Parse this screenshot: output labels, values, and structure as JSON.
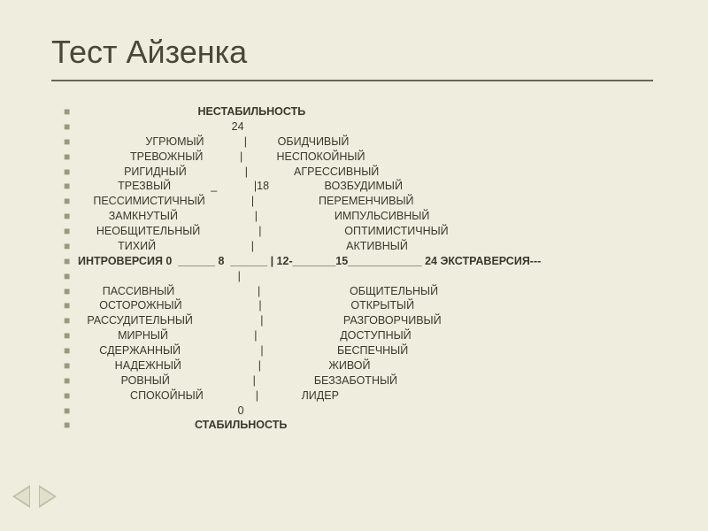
{
  "title": "Тест Айзенка",
  "colors": {
    "background": "#efeddd",
    "text": "#3a382b",
    "title": "#4a4736",
    "bullet": "#9b987f",
    "underline": "#6a6754"
  },
  "typography": {
    "title_fontsize": 36,
    "body_fontsize": 12.5,
    "body_lineheight": 1.35
  },
  "rows": [
    {
      "bold": true,
      "text": "                                       НЕСТАБИЛЬНОСТЬ "
    },
    {
      "bold": false,
      "text": "                                                  24"
    },
    {
      "bold": false,
      "text": "                      УГРЮМЫЙ             |          ОБИДЧИВЫЙ"
    },
    {
      "bold": false,
      "text": "                 ТРЕВОЖНЫЙ            |           НЕСПОКОЙНЫЙ"
    },
    {
      "bold": false,
      "text": "               РИГИДНЫЙ                   |               АГРЕССИВНЫЙ"
    },
    {
      "bold": false,
      "text": "             ТРЕЗВЫЙ             _            |18                  ВОЗБУДИМЫЙ"
    },
    {
      "bold": false,
      "text": "     ПЕССИМИСТИЧНЫЙ               |                     ПЕРЕМЕНЧИВЫЙ"
    },
    {
      "bold": false,
      "text": "          ЗАМКНУТЫЙ                         |                         ИМПУЛЬСИВНЫЙ"
    },
    {
      "bold": false,
      "text": "      НЕОБЩИТЕЛЬНЫЙ                   |                           ОПТИМИСТИЧНЫЙ     "
    },
    {
      "bold": false,
      "text": "             ТИХИЙ                               |                              АКТИВНЫЙ"
    },
    {
      "bold": true,
      "text": "ИНТРОВЕРСИЯ 0  ______ 8  ______ | 12-_______15____________ 24 ЭКСТРАВЕРСИЯ---"
    },
    {
      "bold": false,
      "text": "                                                    |"
    },
    {
      "bold": false,
      "text": "        ПАССИВНЫЙ                           |                             ОБЩИТЕЛЬНЫЙ"
    },
    {
      "bold": false,
      "text": "       ОСТОРОЖНЫЙ                         |                             ОТКРЫТЫЙ"
    },
    {
      "bold": false,
      "text": "   РАССУДИТЕЛЬНЫЙ                      |                          РАЗГОВОРЧИВЫЙ"
    },
    {
      "bold": false,
      "text": "             МИРНЫЙ                            |                           ДОСТУПНЫЙ"
    },
    {
      "bold": false,
      "text": "       СДЕРЖАННЫЙ                          |                        БЕСПЕЧНЫЙ"
    },
    {
      "bold": false,
      "text": "            НАДЕЖНЫЙ                         |                      ЖИВОЙ"
    },
    {
      "bold": false,
      "text": "              РОВНЫЙ                           |                   БЕЗЗАБОТНЫЙ"
    },
    {
      "bold": false,
      "text": "                 СПОКОЙНЫЙ                 |              ЛИДЕР"
    },
    {
      "bold": false,
      "text": "                                                    0"
    },
    {
      "bold": true,
      "text": "                                      СТАБИЛЬНОСТЬ"
    }
  ]
}
